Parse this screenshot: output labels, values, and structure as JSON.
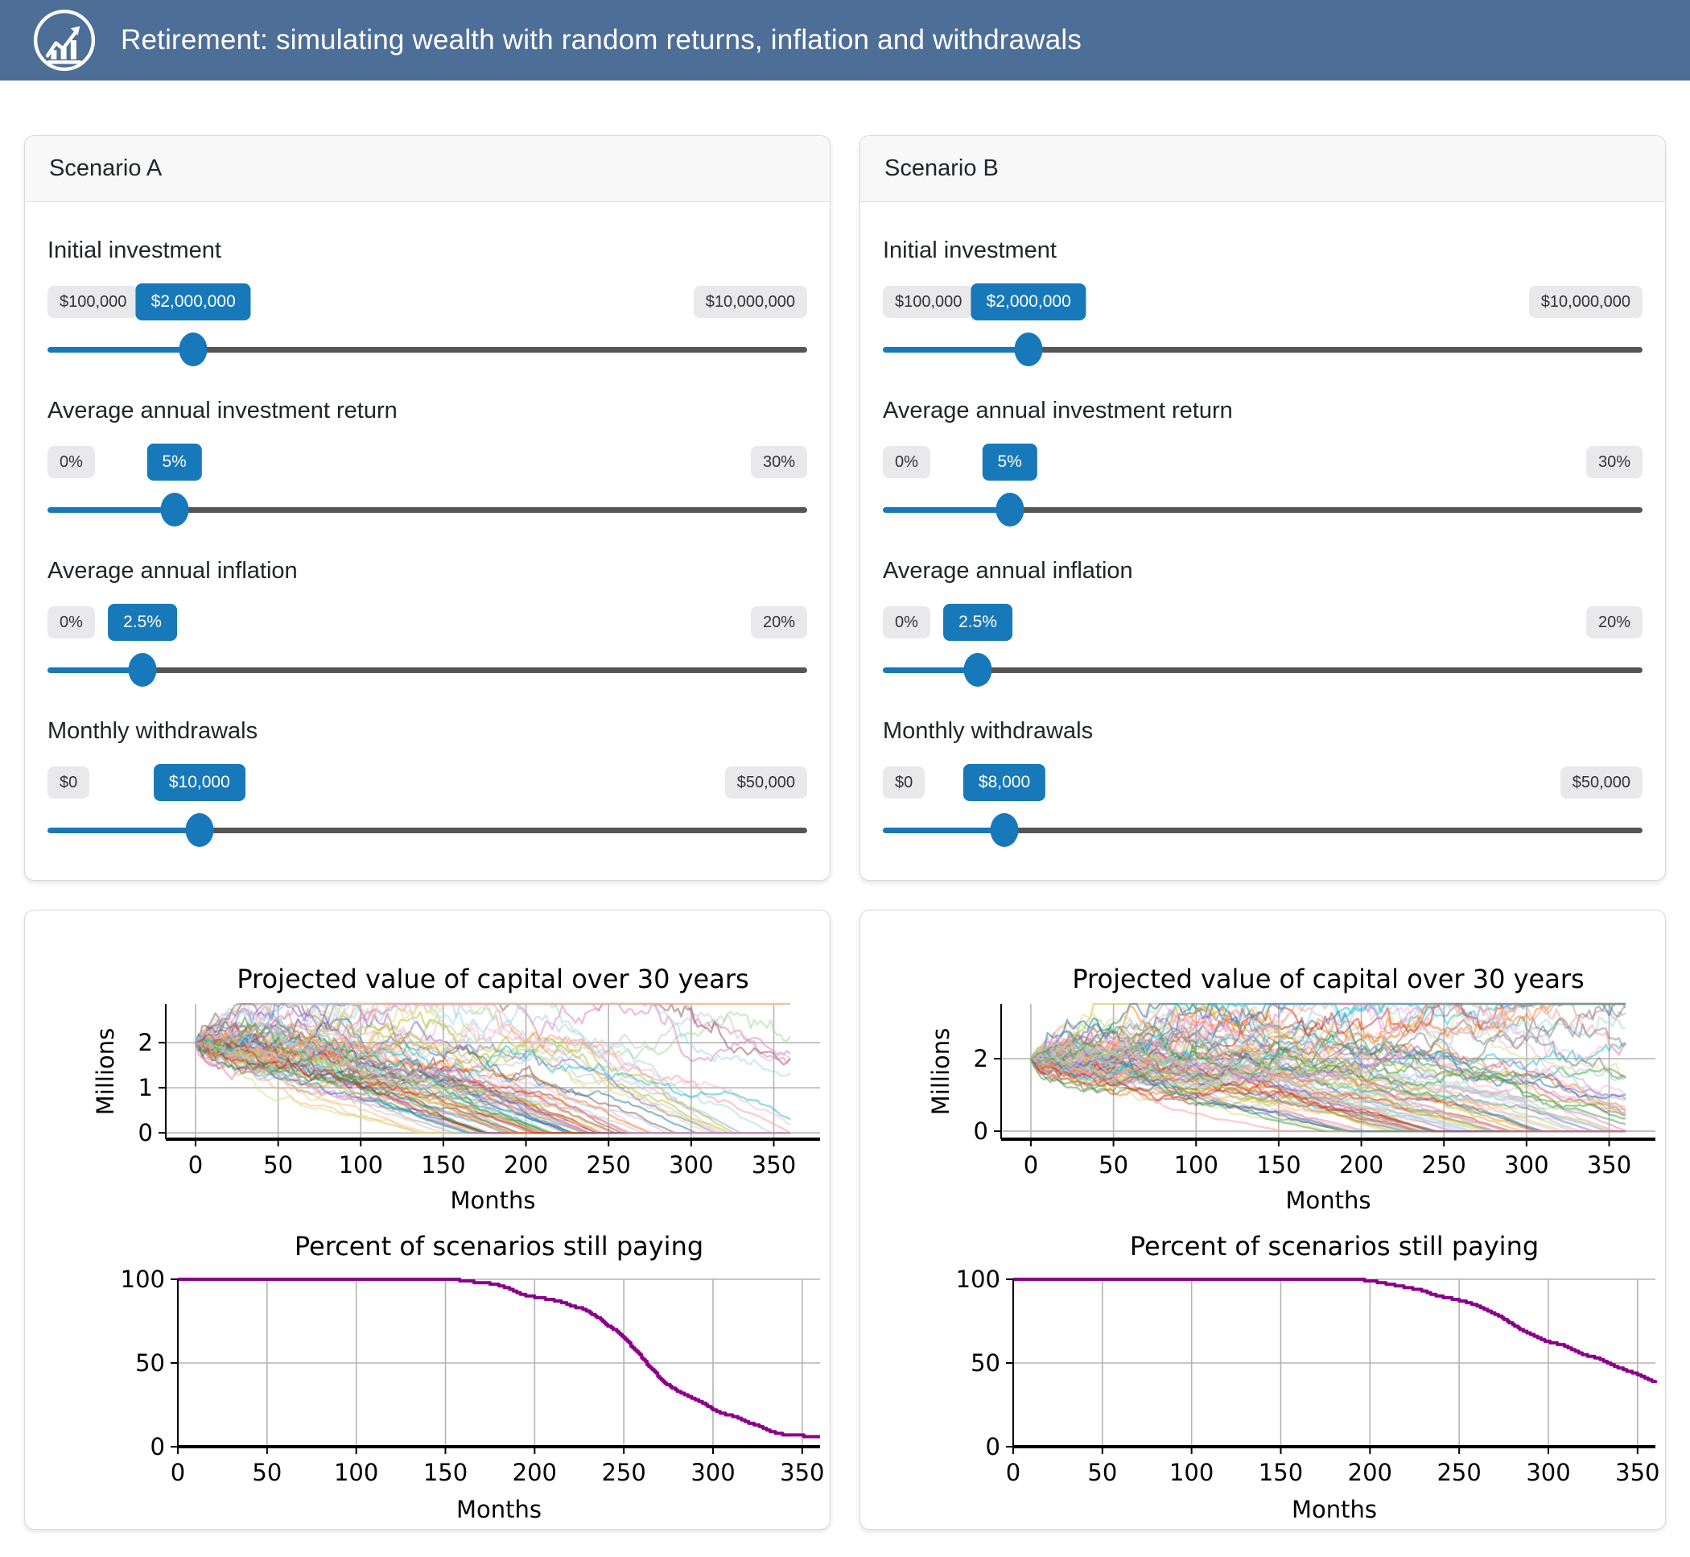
{
  "header": {
    "title": "Retirement: simulating wealth with random returns, inflation and withdrawals",
    "icon": "growth-chart-icon",
    "bg": "#4d6e96"
  },
  "theme": {
    "accent": "#1778ba",
    "track_gray": "#555555",
    "grid": "#b4b4b4",
    "axis": "#000000",
    "percent_line": "#8b008b",
    "spaghetti_alpha": 0.5,
    "palette": [
      "#1f77b4",
      "#aec7e8",
      "#ff7f0e",
      "#ffbb78",
      "#2ca02c",
      "#98df8a",
      "#d62728",
      "#ff9896",
      "#9467bd",
      "#c5b0d5",
      "#8c564b",
      "#c49c94",
      "#e377c2",
      "#f7b6d2",
      "#7f7f7f",
      "#c7c7c7",
      "#bcbd22",
      "#dbdb8d",
      "#17becf",
      "#9edae5"
    ]
  },
  "scenarios": [
    {
      "name": "Scenario A",
      "controls": [
        {
          "label": "Initial investment",
          "min": "$100,000",
          "value": "$2,000,000",
          "max": "$10,000,000",
          "fraction": 0.192
        },
        {
          "label": "Average annual investment return",
          "min": "0%",
          "value": "5%",
          "max": "30%",
          "fraction": 0.167
        },
        {
          "label": "Average annual inflation",
          "min": "0%",
          "value": "2.5%",
          "max": "20%",
          "fraction": 0.125
        },
        {
          "label": "Monthly withdrawals",
          "min": "$0",
          "value": "$10,000",
          "max": "$50,000",
          "fraction": 0.2
        }
      ]
    },
    {
      "name": "Scenario B",
      "controls": [
        {
          "label": "Initial investment",
          "min": "$100,000",
          "value": "$2,000,000",
          "max": "$10,000,000",
          "fraction": 0.192
        },
        {
          "label": "Average annual investment return",
          "min": "0%",
          "value": "5%",
          "max": "30%",
          "fraction": 0.167
        },
        {
          "label": "Average annual inflation",
          "min": "0%",
          "value": "2.5%",
          "max": "20%",
          "fraction": 0.125
        },
        {
          "label": "Monthly withdrawals",
          "min": "$0",
          "value": "$8,000",
          "max": "$50,000",
          "fraction": 0.16
        }
      ]
    }
  ],
  "chart_data": [
    {
      "scenario": "Scenario A",
      "capital": {
        "type": "line",
        "title": "Projected value of capital over 30 years",
        "xlabel": "Months",
        "ylabel": "Millions",
        "x_ticks": [
          0,
          50,
          100,
          150,
          200,
          250,
          300,
          350
        ],
        "y_ticks": [
          0,
          1,
          2
        ],
        "xlim": [
          -18,
          378
        ],
        "ylim": [
          -0.14,
          2.86
        ],
        "grid": true,
        "start_value_millions": 2.0,
        "sim": {
          "n_paths": 90,
          "seed": 20,
          "months": 360,
          "monthly_return_mean": 0.0041,
          "monthly_return_std": 0.035,
          "monthly_withdrawal_millions": 0.01,
          "annual_inflation": 0.025
        }
      },
      "percent": {
        "type": "line",
        "title": "Percent of scenarios still paying",
        "xlabel": "Months",
        "x_ticks": [
          0,
          50,
          100,
          150,
          200,
          250,
          300,
          350
        ],
        "y_ticks": [
          0,
          50,
          100
        ],
        "xlim": [
          0,
          360
        ],
        "ylim": [
          0,
          100
        ],
        "grid": true,
        "keypoints": [
          [
            0,
            100
          ],
          [
            155,
            100
          ],
          [
            160,
            99
          ],
          [
            170,
            98
          ],
          [
            178,
            97
          ],
          [
            184,
            95
          ],
          [
            188,
            93
          ],
          [
            192,
            91
          ],
          [
            196,
            90
          ],
          [
            202,
            89
          ],
          [
            208,
            88
          ],
          [
            212,
            87
          ],
          [
            216,
            86
          ],
          [
            220,
            84
          ],
          [
            224,
            83
          ],
          [
            228,
            82
          ],
          [
            231,
            80
          ],
          [
            234,
            78
          ],
          [
            237,
            76
          ],
          [
            240,
            73
          ],
          [
            243,
            71
          ],
          [
            246,
            69
          ],
          [
            249,
            66
          ],
          [
            252,
            63
          ],
          [
            255,
            59
          ],
          [
            258,
            56
          ],
          [
            261,
            52
          ],
          [
            264,
            48
          ],
          [
            267,
            45
          ],
          [
            270,
            41
          ],
          [
            273,
            38
          ],
          [
            276,
            36
          ],
          [
            280,
            33
          ],
          [
            284,
            31
          ],
          [
            288,
            29
          ],
          [
            292,
            27
          ],
          [
            296,
            25
          ],
          [
            300,
            22
          ],
          [
            304,
            20
          ],
          [
            308,
            19
          ],
          [
            312,
            18
          ],
          [
            316,
            16
          ],
          [
            320,
            14
          ],
          [
            324,
            13
          ],
          [
            328,
            11
          ],
          [
            332,
            9
          ],
          [
            336,
            8
          ],
          [
            340,
            7
          ],
          [
            348,
            7
          ],
          [
            352,
            6
          ],
          [
            360,
            6
          ]
        ]
      }
    },
    {
      "scenario": "Scenario B",
      "capital": {
        "type": "line",
        "title": "Projected value of capital over 30 years",
        "xlabel": "Months",
        "ylabel": "Millions",
        "x_ticks": [
          0,
          50,
          100,
          150,
          200,
          250,
          300,
          350
        ],
        "y_ticks": [
          0,
          2
        ],
        "xlim": [
          -18,
          378
        ],
        "ylim": [
          -0.22,
          3.51
        ],
        "grid": true,
        "start_value_millions": 2.0,
        "sim": {
          "n_paths": 90,
          "seed": 77,
          "months": 360,
          "monthly_return_mean": 0.0041,
          "monthly_return_std": 0.035,
          "monthly_withdrawal_millions": 0.008,
          "annual_inflation": 0.025
        }
      },
      "percent": {
        "type": "line",
        "title": "Percent of scenarios still paying",
        "xlabel": "Months",
        "x_ticks": [
          0,
          50,
          100,
          150,
          200,
          250,
          300,
          350
        ],
        "y_ticks": [
          0,
          50,
          100
        ],
        "xlim": [
          0,
          360
        ],
        "ylim": [
          0,
          100
        ],
        "grid": true,
        "keypoints": [
          [
            0,
            100
          ],
          [
            192,
            100
          ],
          [
            200,
            99
          ],
          [
            206,
            98
          ],
          [
            211,
            97
          ],
          [
            216,
            96
          ],
          [
            221,
            95
          ],
          [
            226,
            94
          ],
          [
            230,
            93
          ],
          [
            234,
            91
          ],
          [
            238,
            90
          ],
          [
            243,
            89
          ],
          [
            247,
            88
          ],
          [
            251,
            87
          ],
          [
            255,
            86
          ],
          [
            258,
            85
          ],
          [
            262,
            83
          ],
          [
            266,
            81
          ],
          [
            270,
            79
          ],
          [
            274,
            77
          ],
          [
            277,
            75
          ],
          [
            280,
            73
          ],
          [
            283,
            71
          ],
          [
            286,
            69
          ],
          [
            290,
            67
          ],
          [
            294,
            65
          ],
          [
            298,
            63
          ],
          [
            302,
            62
          ],
          [
            306,
            61
          ],
          [
            310,
            60
          ],
          [
            313,
            58
          ],
          [
            316,
            57
          ],
          [
            319,
            55
          ],
          [
            323,
            54
          ],
          [
            327,
            53
          ],
          [
            331,
            51
          ],
          [
            334,
            50
          ],
          [
            337,
            48
          ],
          [
            340,
            47
          ],
          [
            344,
            45
          ],
          [
            348,
            44
          ],
          [
            351,
            43
          ],
          [
            354,
            41
          ],
          [
            357,
            40
          ],
          [
            360,
            38
          ]
        ]
      }
    }
  ]
}
